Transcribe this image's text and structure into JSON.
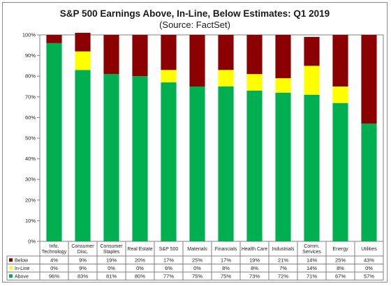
{
  "chart_data": {
    "type": "bar",
    "stacked": true,
    "title": "S&P 500 Earnings Above, In-Line, Below Estimates: Q1 2019",
    "subtitle": "(Source: FactSet)",
    "categories": [
      [
        "Info.",
        "Technology"
      ],
      [
        "Consumer",
        "Disc."
      ],
      [
        "Consumer",
        "Staples"
      ],
      [
        "Real Estate"
      ],
      [
        "S&P 500"
      ],
      [
        "Materials"
      ],
      [
        "Financials"
      ],
      [
        "Health Care"
      ],
      [
        "Industrials"
      ],
      [
        "Comm.",
        "Services"
      ],
      [
        "Energy"
      ],
      [
        "Utilities"
      ]
    ],
    "series": [
      {
        "name": "Below",
        "color": "#8b0000",
        "values": [
          4,
          9,
          19,
          20,
          17,
          25,
          17,
          19,
          21,
          14,
          25,
          43
        ],
        "table_values": [
          "4%",
          "9%",
          "19%",
          "20%",
          "17%",
          "25%",
          "17%",
          "19%",
          "21%",
          "14%",
          "25%",
          "43%"
        ]
      },
      {
        "name": "In-Line",
        "color": "#ffff00",
        "values": [
          0,
          9,
          0,
          0,
          6,
          0,
          8,
          8,
          7,
          14,
          8,
          0
        ],
        "table_values": [
          "0%",
          "9%",
          "0%",
          "0%",
          "6%",
          "0%",
          "8%",
          "8%",
          "7%",
          "14%",
          "8%",
          "0%"
        ]
      },
      {
        "name": "Above",
        "color": "#00b050",
        "values": [
          96,
          83,
          81,
          80,
          77,
          75,
          75,
          73,
          72,
          71,
          67,
          57
        ],
        "table_values": [
          "96%",
          "83%",
          "81%",
          "80%",
          "77%",
          "75%",
          "75%",
          "73%",
          "72%",
          "71%",
          "67%",
          "57%"
        ]
      }
    ],
    "stack_order": [
      "Above",
      "In-Line",
      "Below"
    ],
    "ylim": [
      0,
      100
    ],
    "yticks": [
      "0%",
      "10%",
      "20%",
      "30%",
      "40%",
      "50%",
      "60%",
      "70%",
      "80%",
      "90%",
      "100%"
    ],
    "grid": false,
    "legend": "data-table-rows"
  }
}
